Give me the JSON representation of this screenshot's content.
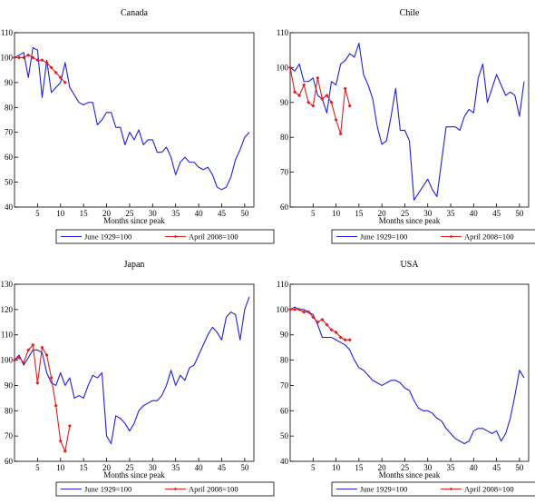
{
  "chart_data": [
    {
      "type": "line",
      "title": "Canada",
      "xlabel": "Months since peak",
      "ylabel": "",
      "xlim": [
        0,
        52
      ],
      "ylim": [
        40,
        110
      ],
      "xticks": [
        5,
        10,
        15,
        20,
        25,
        30,
        35,
        40,
        45,
        50
      ],
      "yticks": [
        40,
        50,
        60,
        70,
        80,
        90,
        100,
        110
      ],
      "legend_position": "bottom",
      "series": [
        {
          "name": "June 1929=100",
          "color": "#1f1fe0",
          "marker": "none",
          "x": [
            0,
            1,
            2,
            3,
            4,
            5,
            6,
            7,
            8,
            9,
            10,
            11,
            12,
            13,
            14,
            15,
            16,
            17,
            18,
            19,
            20,
            21,
            22,
            23,
            24,
            25,
            26,
            27,
            28,
            29,
            30,
            31,
            32,
            33,
            34,
            35,
            36,
            37,
            38,
            39,
            40,
            41,
            42,
            43,
            44,
            45,
            46,
            47,
            48,
            49,
            50,
            51
          ],
          "y": [
            100,
            101,
            102,
            92,
            104,
            103,
            84,
            99,
            86,
            88,
            90,
            98,
            88,
            85,
            82,
            81,
            82,
            82,
            73,
            75,
            78,
            78,
            72,
            72,
            65,
            70,
            67,
            71,
            65,
            67,
            67,
            62,
            62,
            64,
            60,
            53,
            58,
            60,
            58,
            58,
            56,
            55,
            56,
            53,
            48,
            47,
            48,
            52,
            59,
            63,
            68,
            70
          ]
        },
        {
          "name": "April 2008=100",
          "color": "#e01f1f",
          "marker": "diamond",
          "x": [
            0,
            1,
            2,
            3,
            4,
            5,
            6,
            7,
            8,
            9,
            10,
            11
          ],
          "y": [
            100,
            100,
            100,
            101,
            100,
            99,
            99,
            98,
            96,
            94,
            92,
            90
          ]
        }
      ]
    },
    {
      "type": "line",
      "title": "Chile",
      "xlabel": "Months since peak",
      "ylabel": "",
      "xlim": [
        0,
        52
      ],
      "ylim": [
        60,
        110
      ],
      "xticks": [
        5,
        10,
        15,
        20,
        25,
        30,
        35,
        40,
        45,
        50
      ],
      "yticks": [
        60,
        70,
        80,
        90,
        100,
        110
      ],
      "legend_position": "bottom",
      "series": [
        {
          "name": "June 1929=100",
          "color": "#1f1fe0",
          "marker": "none",
          "x": [
            0,
            1,
            2,
            3,
            4,
            5,
            6,
            7,
            8,
            9,
            10,
            11,
            12,
            13,
            14,
            15,
            16,
            17,
            18,
            19,
            20,
            21,
            22,
            23,
            24,
            25,
            26,
            27,
            28,
            29,
            30,
            31,
            32,
            33,
            34,
            35,
            36,
            37,
            38,
            39,
            40,
            41,
            42,
            43,
            44,
            45,
            46,
            47,
            48,
            49,
            50,
            51
          ],
          "y": [
            100,
            99,
            101,
            96,
            96,
            97,
            92,
            91,
            87,
            96,
            95,
            101,
            102,
            104,
            103,
            107,
            98,
            95,
            91,
            83,
            78,
            79,
            86,
            94,
            82,
            82,
            79,
            62,
            64,
            66,
            68,
            65,
            63,
            73,
            83,
            83,
            83,
            82,
            86,
            88,
            87,
            97,
            101,
            90,
            94,
            98,
            95,
            92,
            93,
            92,
            86,
            96
          ]
        },
        {
          "name": "April 2008=100",
          "color": "#e01f1f",
          "marker": "diamond",
          "x": [
            0,
            1,
            2,
            3,
            4,
            5,
            6,
            7,
            8,
            9,
            10,
            11,
            12,
            13
          ],
          "y": [
            100,
            93,
            92,
            95,
            90,
            89,
            97,
            91,
            92,
            90,
            85,
            81,
            94,
            89
          ]
        }
      ]
    },
    {
      "type": "line",
      "title": "Japan",
      "xlabel": "Months since peak",
      "ylabel": "",
      "xlim": [
        0,
        52
      ],
      "ylim": [
        60,
        130
      ],
      "xticks": [
        5,
        10,
        15,
        20,
        25,
        30,
        35,
        40,
        45,
        50
      ],
      "yticks": [
        60,
        70,
        80,
        90,
        100,
        110,
        120,
        130
      ],
      "legend_position": "bottom",
      "series": [
        {
          "name": "June 1929=100",
          "color": "#1f1fe0",
          "marker": "none",
          "x": [
            0,
            1,
            2,
            3,
            4,
            5,
            6,
            7,
            8,
            9,
            10,
            11,
            12,
            13,
            14,
            15,
            16,
            17,
            18,
            19,
            20,
            21,
            22,
            23,
            24,
            25,
            26,
            27,
            28,
            29,
            30,
            31,
            32,
            33,
            34,
            35,
            36,
            37,
            38,
            39,
            40,
            41,
            42,
            43,
            44,
            45,
            46,
            47,
            48,
            49,
            50,
            51
          ],
          "y": [
            100,
            102,
            98,
            101,
            104,
            104,
            103,
            95,
            91,
            90,
            95,
            90,
            93,
            85,
            86,
            85,
            90,
            94,
            93,
            95,
            70,
            67,
            78,
            77,
            75,
            72,
            75,
            80,
            82,
            83,
            84,
            84,
            86,
            90,
            96,
            90,
            94,
            92,
            97,
            98,
            102,
            106,
            110,
            113,
            111,
            108,
            117,
            119,
            118,
            108,
            120,
            125
          ]
        },
        {
          "name": "April 2008=100",
          "color": "#e01f1f",
          "marker": "diamond",
          "x": [
            0,
            1,
            2,
            3,
            4,
            5,
            6,
            7,
            8,
            9,
            10,
            11,
            12
          ],
          "y": [
            100,
            101,
            99,
            104,
            106,
            91,
            105,
            102,
            93,
            82,
            68,
            64,
            74
          ]
        }
      ]
    },
    {
      "type": "line",
      "title": "USA",
      "xlabel": "Months since peak",
      "ylabel": "",
      "xlim": [
        0,
        52
      ],
      "ylim": [
        40,
        110
      ],
      "xticks": [
        5,
        10,
        15,
        20,
        25,
        30,
        35,
        40,
        45,
        50
      ],
      "yticks": [
        40,
        50,
        60,
        70,
        80,
        90,
        100,
        110
      ],
      "legend_position": "bottom",
      "series": [
        {
          "name": "June 1929=100",
          "color": "#1f1fe0",
          "marker": "none",
          "x": [
            0,
            1,
            2,
            3,
            4,
            5,
            6,
            7,
            8,
            9,
            10,
            11,
            12,
            13,
            14,
            15,
            16,
            17,
            18,
            19,
            20,
            21,
            22,
            23,
            24,
            25,
            26,
            27,
            28,
            29,
            30,
            31,
            32,
            33,
            34,
            35,
            36,
            37,
            38,
            39,
            40,
            41,
            42,
            43,
            44,
            45,
            46,
            47,
            48,
            49,
            50,
            51
          ],
          "y": [
            100,
            101,
            100,
            100,
            99,
            98,
            94,
            89,
            89,
            89,
            88,
            87,
            86,
            84,
            80,
            77,
            76,
            74,
            72,
            71,
            70,
            71,
            72,
            72,
            71,
            69,
            68,
            64,
            61,
            60,
            60,
            59,
            57,
            56,
            53,
            51,
            49,
            48,
            47,
            48,
            52,
            53,
            53,
            52,
            51,
            52,
            48,
            51,
            57,
            66,
            76,
            73
          ]
        },
        {
          "name": "April 2008=100",
          "color": "#e01f1f",
          "marker": "diamond",
          "x": [
            0,
            1,
            2,
            3,
            4,
            5,
            6,
            7,
            8,
            9,
            10,
            11,
            12,
            13
          ],
          "y": [
            100,
            100,
            100,
            99,
            99,
            97,
            95,
            96,
            94,
            92,
            91,
            89,
            88,
            88
          ]
        }
      ]
    }
  ]
}
